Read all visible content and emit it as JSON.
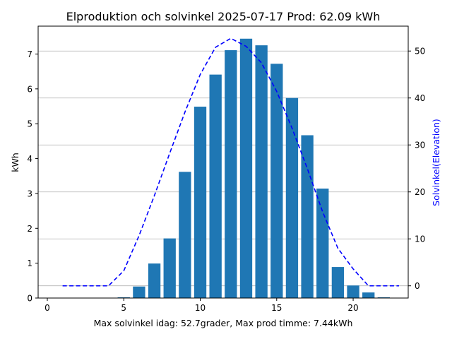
{
  "chart_data": {
    "type": "bar",
    "title": "Elproduktion och solvinkel 2025-07-17 Prod: 62.09 kWh",
    "xlabel": "Max solvinkel idag: 52.7grader, Max prod timme: 7.44kWh",
    "ylabel": "kWh",
    "y2label": "Solvinkel(Elevation)",
    "xlim": [
      -0.6,
      23.6
    ],
    "ylim": [
      0,
      7.8
    ],
    "y2lim": [
      -2.6,
      55.3
    ],
    "xticks": [
      0,
      5,
      10,
      15,
      20
    ],
    "yticks": [
      0,
      1,
      2,
      3,
      4,
      5,
      6,
      7
    ],
    "y2ticks": [
      0,
      10,
      20,
      30,
      40,
      50
    ],
    "grid": "horizontal gridlines from right axis",
    "colors": {
      "bars": "#1f77b4",
      "elevation": "#0000ff",
      "grid": "#b0b0b0"
    },
    "series": [
      {
        "kind": "bar",
        "x": [
          0,
          1,
          2,
          3,
          4,
          5,
          6,
          7,
          8,
          9,
          10,
          11,
          12,
          13,
          14,
          15,
          16,
          17,
          18,
          19,
          20,
          21,
          22,
          23
        ],
        "values": [
          0,
          0,
          0,
          0,
          0,
          0.02,
          0.33,
          0.99,
          1.71,
          3.62,
          5.49,
          6.41,
          7.11,
          7.44,
          7.25,
          6.72,
          5.74,
          4.67,
          3.14,
          0.89,
          0.36,
          0.16,
          0.02,
          0
        ]
      },
      {
        "kind": "line",
        "style": "dashed",
        "x": [
          1,
          2,
          3,
          4,
          5,
          6,
          7,
          8,
          9,
          10,
          11,
          12,
          13,
          14,
          15,
          16,
          17,
          18,
          19,
          20,
          21,
          22,
          23
        ],
        "values": [
          0,
          0,
          0,
          0,
          3.2,
          10.7,
          19.2,
          28.2,
          37.0,
          45.0,
          50.8,
          52.7,
          51.0,
          47.5,
          41.4,
          33.6,
          25.0,
          15.8,
          8.0,
          3.6,
          0.0,
          0,
          0
        ]
      }
    ]
  }
}
